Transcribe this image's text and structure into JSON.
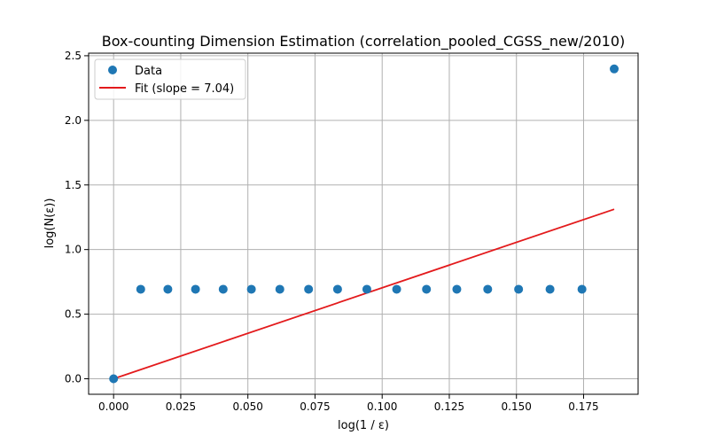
{
  "chart_data": {
    "type": "scatter",
    "title": "Box-counting Dimension Estimation (correlation_pooled_CGSS_new/2010)",
    "xlabel": "log(1 / ε)",
    "ylabel": "log(N(ε))",
    "xlim": [
      -0.0093,
      0.1953
    ],
    "ylim": [
      -0.12,
      2.52
    ],
    "xticks": [
      0.0,
      0.025,
      0.05,
      0.075,
      0.1,
      0.125,
      0.15,
      0.175
    ],
    "xtick_labels": [
      "0.000",
      "0.025",
      "0.050",
      "0.075",
      "0.100",
      "0.125",
      "0.150",
      "0.175"
    ],
    "yticks": [
      0.0,
      0.5,
      1.0,
      1.5,
      2.0,
      2.5
    ],
    "ytick_labels": [
      "0.0",
      "0.5",
      "1.0",
      "1.5",
      "2.0",
      "2.5"
    ],
    "grid": true,
    "legend_position": "top-left",
    "series": [
      {
        "name": "Data",
        "kind": "scatter",
        "color": "#1f77b4",
        "x": [
          0.0,
          0.0101,
          0.0202,
          0.0305,
          0.0408,
          0.0513,
          0.0619,
          0.0726,
          0.0834,
          0.0943,
          0.1054,
          0.1165,
          0.1278,
          0.1393,
          0.1508,
          0.1625,
          0.1744,
          0.1864
        ],
        "y": [
          0.0,
          0.693,
          0.693,
          0.693,
          0.693,
          0.693,
          0.693,
          0.693,
          0.693,
          0.693,
          0.693,
          0.693,
          0.693,
          0.693,
          0.693,
          0.693,
          0.693,
          2.398
        ]
      },
      {
        "name": "Fit (slope = 7.04)",
        "kind": "line",
        "color": "#e31a1c",
        "x": [
          0.0,
          0.1864
        ],
        "y": [
          0.0,
          1.312
        ]
      }
    ]
  }
}
